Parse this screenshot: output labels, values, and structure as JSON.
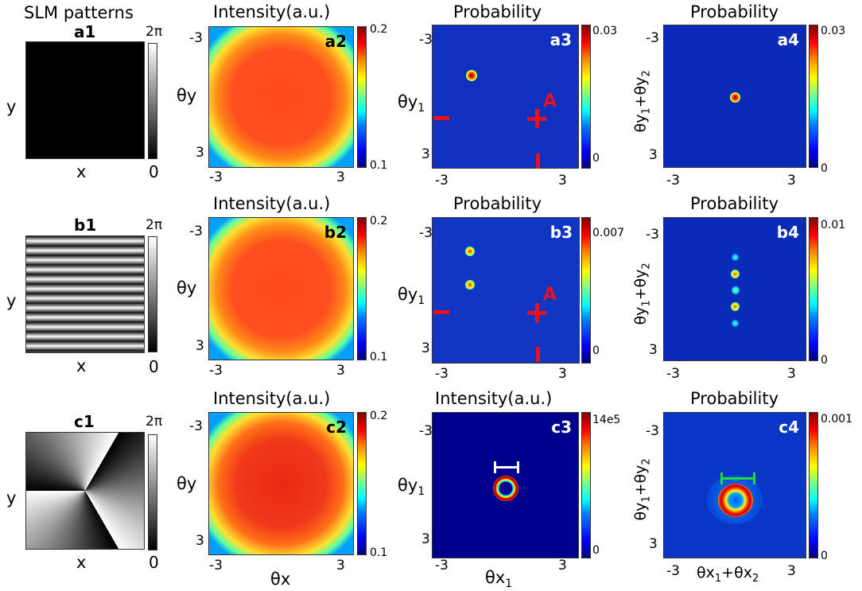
{
  "header": {
    "slm_title": "SLM patterns"
  },
  "titles": {
    "intensity": "Intensity(a.u.)",
    "probability": "Probability"
  },
  "panel_labels": {
    "a1": "a1",
    "a2": "a2",
    "a3": "a3",
    "a4": "a4",
    "b1": "b1",
    "b2": "b2",
    "b3": "b3",
    "b4": "b4",
    "c1": "c1",
    "c2": "c2",
    "c3": "c3",
    "c4": "c4"
  },
  "axes": {
    "x": "x",
    "y": "y",
    "thx": "θx",
    "thy": "θy",
    "thx1": "θx",
    "thx1_sub": "1",
    "thy1": "θy",
    "thy1_sub": "1",
    "sumx": "θx",
    "sumx_sub1": "1",
    "sumx_plus": "+θx",
    "sumx_sub2": "2",
    "sumy": "θy",
    "sumy_sub1": "1",
    "sumy_plus": "+θy",
    "sumy_sub2": "2"
  },
  "ticks": {
    "neg": "-3",
    "pos": "3"
  },
  "colorbars": {
    "phase_max": "2π",
    "phase_min": "0",
    "int_max": "0.2",
    "int_min": "0.1",
    "a3_max": "0.03",
    "a3_min": "0",
    "a4_max": "0.03",
    "a4_min": "0",
    "b3_max": "0.007",
    "b3_min": "0",
    "b4_max": "0.01",
    "b4_min": "0",
    "c3_max": "14e5",
    "c3_min": "0",
    "c4_max": "0.001",
    "c4_min": "0"
  },
  "annotations": {
    "marker_A": "A"
  },
  "colors": {
    "marker_red": "#e8101a",
    "bar_white": "#ffffff",
    "bar_green": "#22dd33"
  }
}
